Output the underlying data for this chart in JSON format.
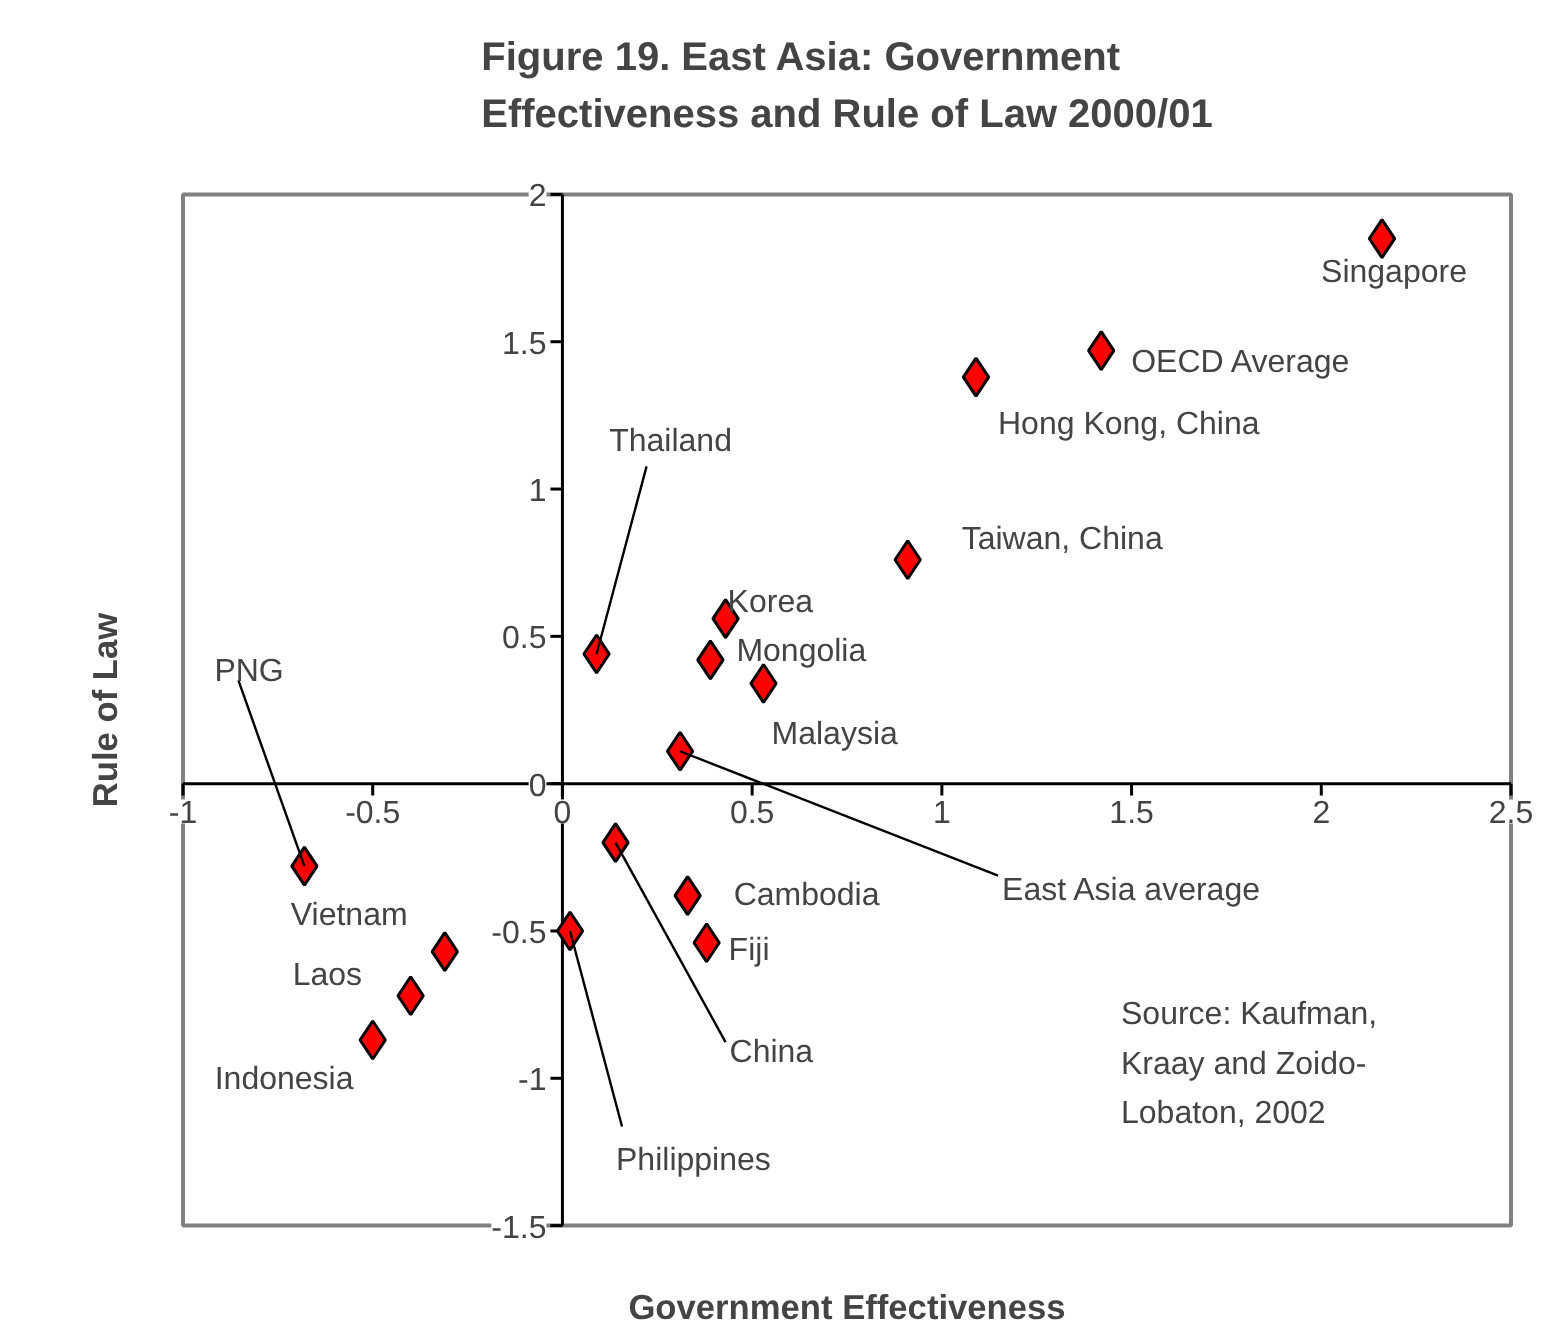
{
  "chart_data": {
    "type": "scatter",
    "title": "Figure 19. East Asia:  Government\nEffectiveness and Rule of Law 2000/01",
    "xlabel": "Government Effectiveness",
    "ylabel": "Rule of Law",
    "x": [
      2.16,
      1.42,
      1.09,
      0.91,
      0.43,
      0.39,
      0.53,
      0.31,
      0.09,
      -0.68,
      -0.31,
      -0.4,
      -0.5,
      0.33,
      0.38,
      0.14,
      0.02
    ],
    "series": [
      {
        "color": "#ff0000",
        "values": [
          1.85,
          1.47,
          1.38,
          0.76,
          0.56,
          0.42,
          0.34,
          0.11,
          0.44,
          -0.28,
          -0.57,
          -0.72,
          -0.87,
          -0.38,
          -0.54,
          -0.2,
          -0.5
        ]
      }
    ],
    "marker": "diamond",
    "grid": false,
    "xlim": [
      -1,
      2.5
    ],
    "ylim": [
      -1.5,
      2
    ],
    "xticks": [
      -1,
      -0.5,
      0,
      0.5,
      1,
      1.5,
      2,
      2.5
    ],
    "yticks": [
      -1.5,
      -1,
      -0.5,
      0,
      0.5,
      1,
      1.5,
      2
    ],
    "annotations": [
      {
        "text": "Singapore",
        "x": 2.16,
        "y": 1.85
      },
      {
        "text": "OECD Average",
        "x": 1.42,
        "y": 1.47
      },
      {
        "text": "Hong Kong, China",
        "x": 1.09,
        "y": 1.38
      },
      {
        "text": "Taiwan, China",
        "x": 0.91,
        "y": 0.76
      },
      {
        "text": "Korea",
        "x": 0.43,
        "y": 0.56
      },
      {
        "text": "Mongolia",
        "x": 0.39,
        "y": 0.42
      },
      {
        "text": "Malaysia",
        "x": 0.53,
        "y": 0.34
      },
      {
        "text": "East Asia average",
        "x": 0.31,
        "y": 0.11
      },
      {
        "text": "Thailand",
        "x": 0.09,
        "y": 0.44
      },
      {
        "text": "PNG",
        "x": -0.68,
        "y": -0.28
      },
      {
        "text": "Vietnam",
        "x": -0.31,
        "y": -0.57
      },
      {
        "text": "Laos",
        "x": -0.4,
        "y": -0.72
      },
      {
        "text": "Indonesia",
        "x": -0.5,
        "y": -0.87
      },
      {
        "text": "Cambodia",
        "x": 0.33,
        "y": -0.38
      },
      {
        "text": "Fiji",
        "x": 0.38,
        "y": -0.54
      },
      {
        "text": "China",
        "x": 0.14,
        "y": -0.2
      },
      {
        "text": "Philippines",
        "x": 0.02,
        "y": -0.5
      },
      "Source: Kaufman,\nKraay and Zoido-\nLobaton, 2002"
    ]
  }
}
